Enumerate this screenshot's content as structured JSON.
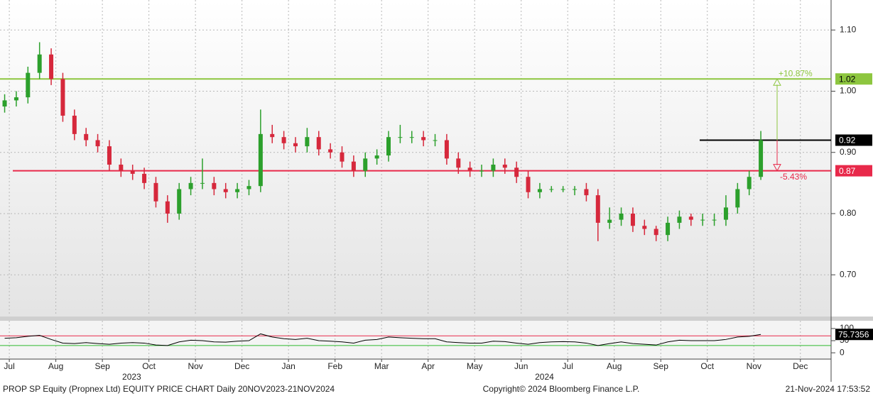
{
  "chart_data": [
    {
      "type": "candlestick",
      "x": [
        -0.1,
        0.15,
        0.4,
        0.65,
        0.9,
        1.15,
        1.4,
        1.65,
        1.9,
        2.15,
        2.4,
        2.65,
        2.9,
        3.15,
        3.4,
        3.65,
        3.9,
        4.15,
        4.4,
        4.65,
        4.9,
        5.15,
        5.4,
        5.65,
        5.9,
        6.15,
        6.4,
        6.65,
        6.9,
        7.15,
        7.4,
        7.65,
        7.9,
        8.15,
        8.4,
        8.65,
        8.9,
        9.15,
        9.4,
        9.65,
        9.9,
        10.15,
        10.4,
        10.65,
        10.9,
        11.15,
        11.4,
        11.65,
        11.9,
        12.15,
        12.4,
        12.65,
        12.9,
        13.15,
        13.4,
        13.65,
        13.9,
        14.15,
        14.4,
        14.65,
        14.9,
        15.15,
        15.4,
        15.65,
        15.9,
        16.15
      ],
      "open": [
        0.975,
        0.985,
        0.99,
        1.03,
        1.06,
        1.02,
        0.96,
        0.93,
        0.92,
        0.91,
        0.88,
        0.87,
        0.865,
        0.85,
        0.82,
        0.8,
        0.84,
        0.85,
        0.85,
        0.84,
        0.835,
        0.84,
        0.845,
        0.93,
        0.925,
        0.915,
        0.91,
        0.925,
        0.905,
        0.9,
        0.885,
        0.87,
        0.89,
        0.895,
        0.925,
        0.925,
        0.925,
        0.92,
        0.92,
        0.89,
        0.875,
        0.87,
        0.87,
        0.88,
        0.875,
        0.86,
        0.835,
        0.84,
        0.84,
        0.84,
        0.84,
        0.83,
        0.785,
        0.79,
        0.8,
        0.78,
        0.775,
        0.765,
        0.785,
        0.795,
        0.79,
        0.79,
        0.79,
        0.81,
        0.84,
        0.86
      ],
      "high": [
        0.995,
        1.0,
        1.04,
        1.08,
        1.07,
        1.03,
        0.97,
        0.94,
        0.93,
        0.92,
        0.89,
        0.88,
        0.875,
        0.86,
        0.83,
        0.85,
        0.86,
        0.89,
        0.86,
        0.85,
        0.85,
        0.855,
        0.97,
        0.945,
        0.935,
        0.925,
        0.94,
        0.935,
        0.915,
        0.91,
        0.895,
        0.9,
        0.905,
        0.935,
        0.945,
        0.935,
        0.935,
        0.93,
        0.93,
        0.9,
        0.885,
        0.88,
        0.89,
        0.89,
        0.885,
        0.87,
        0.85,
        0.845,
        0.845,
        0.845,
        0.85,
        0.84,
        0.81,
        0.81,
        0.81,
        0.79,
        0.78,
        0.795,
        0.805,
        0.8,
        0.8,
        0.8,
        0.83,
        0.85,
        0.87,
        0.935
      ],
      "low": [
        0.965,
        0.975,
        0.98,
        1.02,
        1.01,
        0.95,
        0.92,
        0.91,
        0.9,
        0.87,
        0.86,
        0.855,
        0.84,
        0.81,
        0.785,
        0.79,
        0.83,
        0.84,
        0.83,
        0.825,
        0.825,
        0.83,
        0.835,
        0.915,
        0.905,
        0.9,
        0.9,
        0.895,
        0.89,
        0.875,
        0.86,
        0.86,
        0.88,
        0.885,
        0.915,
        0.915,
        0.91,
        0.91,
        0.88,
        0.865,
        0.86,
        0.86,
        0.86,
        0.865,
        0.85,
        0.825,
        0.825,
        0.835,
        0.835,
        0.83,
        0.82,
        0.755,
        0.775,
        0.78,
        0.77,
        0.765,
        0.755,
        0.755,
        0.775,
        0.78,
        0.78,
        0.78,
        0.78,
        0.8,
        0.83,
        0.855
      ],
      "close": [
        0.985,
        0.99,
        1.03,
        1.06,
        1.02,
        0.96,
        0.93,
        0.92,
        0.91,
        0.88,
        0.87,
        0.865,
        0.85,
        0.82,
        0.8,
        0.84,
        0.85,
        0.85,
        0.84,
        0.835,
        0.84,
        0.845,
        0.93,
        0.925,
        0.915,
        0.91,
        0.925,
        0.905,
        0.9,
        0.885,
        0.87,
        0.89,
        0.895,
        0.925,
        0.925,
        0.925,
        0.92,
        0.92,
        0.89,
        0.875,
        0.87,
        0.87,
        0.88,
        0.875,
        0.86,
        0.835,
        0.84,
        0.84,
        0.84,
        0.84,
        0.83,
        0.785,
        0.79,
        0.8,
        0.78,
        0.775,
        0.765,
        0.785,
        0.795,
        0.79,
        0.79,
        0.79,
        0.81,
        0.84,
        0.86,
        0.92
      ],
      "up_color": "#2ca02c",
      "down_color": "#d6283c",
      "xlim": [
        -0.2,
        17.66
      ],
      "ylim": [
        0.633,
        1.149
      ],
      "yticks": [
        {
          "value": 0.7,
          "label": "0.70"
        },
        {
          "value": 0.8,
          "label": "0.80"
        },
        {
          "value": 0.9,
          "label": "0.90"
        },
        {
          "value": 1.0,
          "label": "1.00"
        },
        {
          "value": 1.1,
          "label": "1.10"
        }
      ],
      "grid": true,
      "levels": [
        {
          "value": 1.02,
          "color": "#8dc63f"
        },
        {
          "value": 0.92,
          "color": "#000000"
        },
        {
          "value": 0.87,
          "color": "#e8294a"
        }
      ],
      "annotations": [
        {
          "text": "+10.87%",
          "color": "#8dc63f"
        },
        {
          "text": "-5.43%",
          "color": "#e8294a"
        }
      ]
    },
    {
      "type": "line",
      "x": [
        -0.1,
        0.15,
        0.4,
        0.65,
        0.9,
        1.15,
        1.4,
        1.65,
        1.9,
        2.15,
        2.4,
        2.65,
        2.9,
        3.15,
        3.4,
        3.65,
        3.9,
        4.15,
        4.4,
        4.65,
        4.9,
        5.15,
        5.4,
        5.65,
        5.9,
        6.15,
        6.4,
        6.65,
        6.9,
        7.15,
        7.4,
        7.65,
        7.9,
        8.15,
        8.4,
        8.65,
        8.9,
        9.15,
        9.4,
        9.65,
        9.9,
        10.15,
        10.4,
        10.65,
        10.9,
        11.15,
        11.4,
        11.65,
        11.9,
        12.15,
        12.4,
        12.65,
        12.9,
        13.15,
        13.4,
        13.65,
        13.9,
        14.15,
        14.4,
        14.65,
        14.9,
        15.15,
        15.4,
        15.65,
        15.9,
        16.15
      ],
      "values": [
        60,
        62,
        68,
        72,
        55,
        40,
        38,
        42,
        38,
        35,
        40,
        42,
        40,
        32,
        30,
        45,
        52,
        50,
        45,
        44,
        48,
        50,
        78,
        65,
        58,
        55,
        60,
        50,
        48,
        45,
        40,
        52,
        55,
        65,
        62,
        60,
        58,
        58,
        45,
        42,
        40,
        40,
        48,
        46,
        40,
        35,
        42,
        45,
        46,
        45,
        40,
        30,
        38,
        45,
        38,
        35,
        32,
        45,
        52,
        50,
        50,
        50,
        55,
        65,
        68,
        75.7356
      ],
      "color": "#000000",
      "xlim": [
        -0.2,
        17.66
      ],
      "ylim": [
        -26,
        132
      ],
      "yticks": [
        0,
        50,
        100
      ],
      "levels": [
        {
          "value": 70,
          "color": "#e8294a"
        },
        {
          "value": 30,
          "color": "#2db92d"
        }
      ],
      "xticks": [
        {
          "value": 0,
          "label": "Jul"
        },
        {
          "value": 1,
          "label": "Aug"
        },
        {
          "value": 2,
          "label": "Sep"
        },
        {
          "value": 3,
          "label": "Oct"
        },
        {
          "value": 4,
          "label": "Nov"
        },
        {
          "value": 5,
          "label": "Dec"
        },
        {
          "value": 6,
          "label": "Jan"
        },
        {
          "value": 7,
          "label": "Feb"
        },
        {
          "value": 8,
          "label": "Mar"
        },
        {
          "value": 9,
          "label": "Apr"
        },
        {
          "value": 10,
          "label": "May"
        },
        {
          "value": 11,
          "label": "Jun"
        },
        {
          "value": 12,
          "label": "Jul"
        },
        {
          "value": 13,
          "label": "Aug"
        },
        {
          "value": 14,
          "label": "Sep"
        },
        {
          "value": 15,
          "label": "Oct"
        },
        {
          "value": 16,
          "label": "Nov"
        },
        {
          "value": 17,
          "label": "Dec"
        }
      ],
      "year_ticks": [
        {
          "value": 2.63,
          "label": "2023"
        },
        {
          "value": 11.5,
          "label": "2024"
        }
      ]
    }
  ],
  "footer": {
    "left": "PROP SP Equity (Propnex Ltd) EQUITY PRICE CHART  Daily 20NOV2023-21NOV2024",
    "center": "Copyright© 2024 Bloomberg Finance L.P.",
    "right": "21-Nov-2024 17:53:52"
  }
}
